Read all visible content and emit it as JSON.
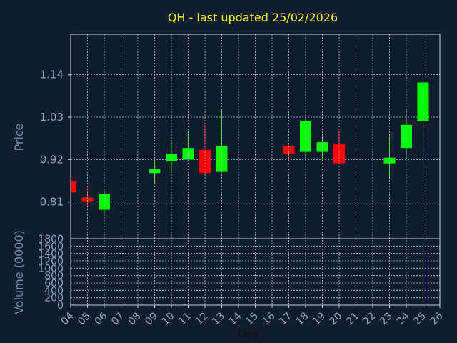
{
  "colors": {
    "background": "#0f1d2e",
    "plot_background": "#0f1d2e",
    "frame": "#c8d2dc",
    "grid": "#b8c4cf",
    "title": "#ffff00",
    "label": "#6d8fb0",
    "tick_label": "#8ea7c2",
    "up": "#00ff00",
    "down": "#ff0000",
    "wick_up": "#00dd00",
    "wick_down": "#ff0000",
    "volume": "#00ff00"
  },
  "chart_data": [
    {
      "type": "candlestick",
      "title": "QH - last updated 25/02/2026",
      "ylabel": "Price",
      "xlabel": "",
      "ylim": [
        0.715,
        1.245
      ],
      "yticks": [
        "0.81",
        "0.92",
        "1.03",
        "1.14"
      ],
      "ytick_values": [
        0.81,
        0.92,
        1.03,
        1.14
      ],
      "x_ticks": [
        "04",
        "05",
        "06",
        "07",
        "08",
        "09",
        "10",
        "11",
        "12",
        "13",
        "14",
        "15",
        "16",
        "17",
        "18",
        "19",
        "20",
        "21",
        "22",
        "23",
        "24",
        "25",
        "26"
      ],
      "grid": true,
      "candles": [
        {
          "x": "04",
          "open": 0.865,
          "high": 0.865,
          "low": 0.835,
          "close": 0.835
        },
        {
          "x": "05",
          "open": 0.822,
          "high": 0.85,
          "low": 0.79,
          "close": 0.812
        },
        {
          "x": "06",
          "open": 0.79,
          "high": 0.84,
          "low": 0.78,
          "close": 0.83
        },
        {
          "x": "09",
          "open": 0.885,
          "high": 0.92,
          "low": 0.855,
          "close": 0.895
        },
        {
          "x": "10",
          "open": 0.915,
          "high": 0.97,
          "low": 0.89,
          "close": 0.935
        },
        {
          "x": "11",
          "open": 0.92,
          "high": 0.995,
          "low": 0.915,
          "close": 0.95
        },
        {
          "x": "12",
          "open": 0.945,
          "high": 1.015,
          "low": 0.88,
          "close": 0.885
        },
        {
          "x": "13",
          "open": 0.89,
          "high": 1.05,
          "low": 0.89,
          "close": 0.955
        },
        {
          "x": "17",
          "open": 0.955,
          "high": 0.96,
          "low": 0.92,
          "close": 0.935
        },
        {
          "x": "18",
          "open": 0.94,
          "high": 1.025,
          "low": 0.925,
          "close": 1.02
        },
        {
          "x": "19",
          "open": 0.94,
          "high": 0.98,
          "low": 0.92,
          "close": 0.965
        },
        {
          "x": "20",
          "open": 0.96,
          "high": 0.99,
          "low": 0.91,
          "close": 0.91
        },
        {
          "x": "23",
          "open": 0.91,
          "high": 0.98,
          "low": 0.87,
          "close": 0.925
        },
        {
          "x": "24",
          "open": 0.95,
          "high": 1.05,
          "low": 0.92,
          "close": 1.01
        },
        {
          "x": "25",
          "open": 1.02,
          "high": 1.13,
          "low": 0.895,
          "close": 1.12
        }
      ]
    },
    {
      "type": "bar",
      "ylabel": "Volume (0000)",
      "xlabel": "Day",
      "ylim": [
        0,
        1800
      ],
      "yticks": [
        "0",
        "200",
        "400",
        "600",
        "800",
        "1000",
        "1200",
        "1400",
        "1600",
        "1800"
      ],
      "ytick_values": [
        0,
        200,
        400,
        600,
        800,
        1000,
        1200,
        1400,
        1600,
        1800
      ],
      "x_ticks": [
        "04",
        "05",
        "06",
        "07",
        "08",
        "09",
        "10",
        "11",
        "12",
        "13",
        "14",
        "15",
        "16",
        "17",
        "18",
        "19",
        "20",
        "21",
        "22",
        "23",
        "24",
        "25",
        "26"
      ],
      "grid": true,
      "bars": [
        {
          "x": "25",
          "value": 1700
        }
      ]
    }
  ]
}
